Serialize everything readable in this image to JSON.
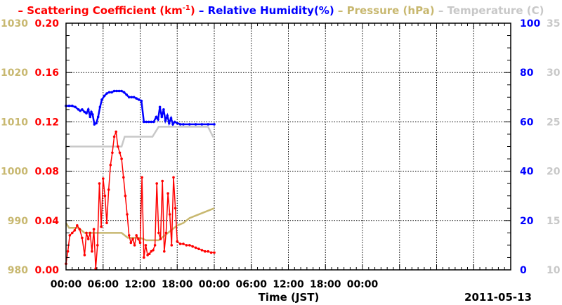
{
  "chart_data": {
    "type": "line",
    "legend": [
      {
        "key": "scat",
        "dash": "–",
        "prefix": "Scattering Coefficient (km",
        "sup": "-1",
        "suffix": ")",
        "color": "#ff0000"
      },
      {
        "key": "rh",
        "dash": "–",
        "prefix": "Relative Humidity(%)",
        "sup": "",
        "suffix": "",
        "color": "#0000ff"
      },
      {
        "key": "pres",
        "dash": "–",
        "prefix": "Pressure (hPa)",
        "sup": "",
        "suffix": "",
        "color": "#c8b870"
      },
      {
        "key": "temp",
        "dash": "–",
        "prefix": "Temperature (",
        "sup": "",
        "suffix": "C)",
        "color": "#c8c8c8"
      }
    ],
    "xlabel": "Time (JST)",
    "date_label": "2011-05-13",
    "x_unit": "hours",
    "xlim": [
      0,
      72
    ],
    "x_ticks": [
      0,
      6,
      12,
      18,
      24,
      30,
      36,
      42,
      48,
      54,
      60,
      66,
      72
    ],
    "x_tick_labels": [
      "00:00",
      "06:00",
      "12:00",
      "18:00",
      "00:00",
      "06:00",
      "12:00",
      "18:00",
      "00:00",
      "",
      "",
      "",
      ""
    ],
    "grid": true,
    "axes": {
      "scat": {
        "side": "left-inner",
        "lim": [
          0,
          0.2
        ],
        "ticks": [
          "0.00",
          "0.04",
          "0.08",
          "0.12",
          "0.16",
          "0.20"
        ],
        "color": "#ff0000"
      },
      "pres": {
        "side": "left-outer",
        "lim": [
          980,
          1030
        ],
        "ticks": [
          "980",
          "990",
          "1000",
          "1010",
          "1020",
          "1030"
        ],
        "color": "#c8b870"
      },
      "rh": {
        "side": "right-inner",
        "lim": [
          0,
          100
        ],
        "ticks": [
          "0",
          "20",
          "40",
          "60",
          "80",
          "100"
        ],
        "color": "#0000ff"
      },
      "temp": {
        "side": "right-outer",
        "lim": [
          10,
          35
        ],
        "ticks": [
          "10",
          "15",
          "20",
          "25",
          "30",
          "35"
        ],
        "color": "#c8c8c8"
      }
    },
    "series": [
      {
        "name": "Relative Humidity(%)",
        "axis": "rh",
        "color": "#0000ff",
        "markers": true,
        "x": [
          0,
          0.5,
          1,
          1.5,
          2,
          2.3,
          2.6,
          3,
          3.3,
          3.6,
          3.9,
          4.1,
          4.3,
          4.6,
          4.9,
          5.2,
          5.5,
          5.8,
          6.2,
          6.6,
          7,
          7.4,
          7.8,
          8.2,
          8.6,
          9,
          9.4,
          9.8,
          10.2,
          10.6,
          11,
          11.4,
          11.8,
          12.2,
          12.6,
          13,
          13.4,
          13.8,
          14.2,
          14.6,
          14.9,
          15.2,
          15.5,
          15.8,
          16.1,
          16.4,
          16.7,
          17,
          17.3,
          17.6,
          18,
          18.5,
          19,
          20,
          21,
          22,
          23,
          24
        ],
        "y": [
          66.5,
          66.5,
          66.5,
          66,
          65,
          64.5,
          65,
          64,
          63.5,
          65,
          62,
          64,
          63,
          59,
          59.5,
          62,
          66,
          69,
          70.5,
          71.5,
          72,
          72,
          72.5,
          72.5,
          72.5,
          72.5,
          72,
          71,
          70,
          70,
          70,
          69.5,
          69,
          68.5,
          60,
          60,
          60,
          60,
          60,
          62,
          61,
          66,
          62,
          65,
          60.5,
          62.5,
          59.5,
          61.5,
          59,
          60,
          59.5,
          59,
          59,
          59,
          59,
          59,
          59,
          59
        ]
      },
      {
        "name": "Temperature (C)",
        "axis": "temp",
        "color": "#c8c8c8",
        "markers": false,
        "x": [
          0,
          2,
          4,
          6,
          8,
          9,
          9.5,
          10,
          12,
          13,
          14,
          15,
          16,
          17,
          18,
          19,
          20,
          21,
          22,
          23,
          23.8,
          24
        ],
        "y": [
          22.5,
          22.5,
          22.5,
          22.5,
          22.5,
          22.5,
          23.5,
          23.5,
          23.5,
          23.5,
          23.5,
          24.5,
          24.5,
          24.5,
          24.5,
          24.5,
          24.5,
          24.5,
          24.5,
          24.5,
          23.5,
          23.5
        ]
      },
      {
        "name": "Pressure (hPa)",
        "axis": "pres",
        "color": "#c8b870",
        "markers": false,
        "x": [
          0,
          0.5,
          1,
          2,
          3,
          4,
          5,
          6,
          7,
          8,
          9,
          10,
          11,
          12,
          13,
          14,
          15,
          16,
          17,
          18,
          19,
          20,
          21,
          22,
          23,
          24
        ],
        "y": [
          989.5,
          988.5,
          988.5,
          988.5,
          987.5,
          987.5,
          987.5,
          987.5,
          987.5,
          987.5,
          987.5,
          986.5,
          986.5,
          986.5,
          986,
          986,
          986,
          987,
          988,
          989,
          989.5,
          990.5,
          991,
          991.5,
          992,
          992.5
        ]
      },
      {
        "name": "Scattering Coefficient (km-1)",
        "axis": "scat",
        "color": "#ff0000",
        "markers": true,
        "x": [
          0,
          0.3,
          0.6,
          1,
          1.4,
          1.8,
          2.2,
          2.6,
          3,
          3.3,
          3.6,
          3.9,
          4.2,
          4.5,
          4.8,
          5.1,
          5.4,
          5.7,
          6,
          6.3,
          6.6,
          6.9,
          7.2,
          7.5,
          7.8,
          8.1,
          8.4,
          8.7,
          9,
          9.3,
          9.6,
          9.9,
          10.2,
          10.5,
          10.8,
          11.1,
          11.4,
          11.7,
          12,
          12.3,
          12.6,
          12.9,
          13.2,
          13.5,
          13.8,
          14.1,
          14.4,
          14.7,
          15,
          15.3,
          15.6,
          15.9,
          16.2,
          16.5,
          16.8,
          17.1,
          17.4,
          17.7,
          18,
          18.5,
          19,
          19.5,
          20,
          20.5,
          21,
          21.5,
          22,
          22.5,
          23,
          23.5,
          24
        ],
        "y": [
          0.005,
          0.015,
          0.028,
          0.03,
          0.032,
          0.036,
          0.033,
          0.026,
          0.012,
          0.03,
          0.025,
          0.03,
          0.015,
          0.033,
          0.001,
          0.02,
          0.07,
          0.035,
          0.074,
          0.06,
          0.038,
          0.065,
          0.085,
          0.095,
          0.108,
          0.112,
          0.1,
          0.095,
          0.09,
          0.075,
          0.06,
          0.045,
          0.028,
          0.022,
          0.025,
          0.02,
          0.028,
          0.025,
          0.022,
          0.075,
          0.01,
          0.02,
          0.012,
          0.013,
          0.015,
          0.016,
          0.02,
          0.07,
          0.03,
          0.025,
          0.072,
          0.015,
          0.03,
          0.062,
          0.045,
          0.02,
          0.075,
          0.05,
          0.023,
          0.021,
          0.021,
          0.02,
          0.02,
          0.019,
          0.018,
          0.017,
          0.016,
          0.015,
          0.015,
          0.014,
          0.014
        ]
      }
    ]
  }
}
